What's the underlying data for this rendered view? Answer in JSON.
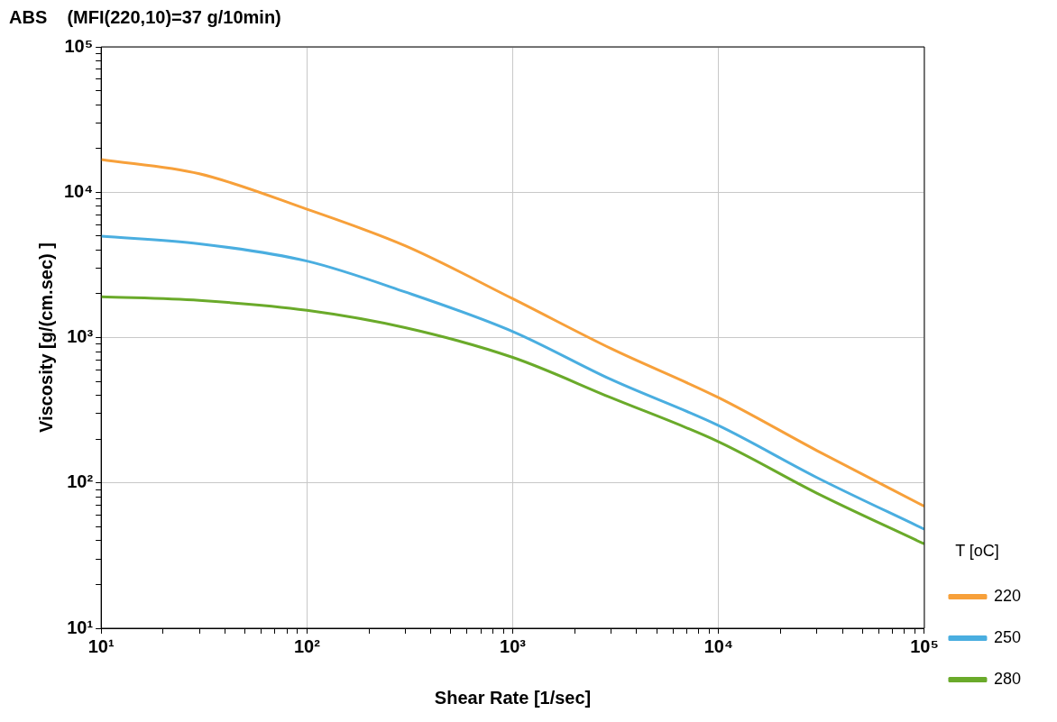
{
  "chart_data": {
    "type": "line",
    "title": "ABS    (MFI(220,10)=37 g/10min)",
    "xlabel": "Shear Rate [1/sec]",
    "ylabel": "Viscosity [g/(cm.sec) ]",
    "legend_title": "T [oC]",
    "log": "xy",
    "grid": true,
    "legend": "bottom right",
    "marker": "none",
    "line_style": "solid",
    "x": [
      10,
      30,
      100,
      300,
      1000,
      3000,
      10000,
      30000,
      100000
    ],
    "xlim": [
      10,
      100000
    ],
    "ylim": [
      10,
      100000
    ],
    "xticks": [
      {
        "value": 10,
        "label": "10¹"
      },
      {
        "value": 20,
        "label": null
      },
      {
        "value": 30,
        "label": null
      },
      {
        "value": 40,
        "label": null
      },
      {
        "value": 50,
        "label": null
      },
      {
        "value": 60,
        "label": null
      },
      {
        "value": 70,
        "label": null
      },
      {
        "value": 80,
        "label": null
      },
      {
        "value": 90,
        "label": null
      },
      {
        "value": 100,
        "label": "10²"
      },
      {
        "value": 200,
        "label": null
      },
      {
        "value": 300,
        "label": null
      },
      {
        "value": 400,
        "label": null
      },
      {
        "value": 500,
        "label": null
      },
      {
        "value": 600,
        "label": null
      },
      {
        "value": 700,
        "label": null
      },
      {
        "value": 800,
        "label": null
      },
      {
        "value": 900,
        "label": null
      },
      {
        "value": 1000,
        "label": "10³"
      },
      {
        "value": 2000,
        "label": null
      },
      {
        "value": 3000,
        "label": null
      },
      {
        "value": 4000,
        "label": null
      },
      {
        "value": 5000,
        "label": null
      },
      {
        "value": 6000,
        "label": null
      },
      {
        "value": 7000,
        "label": null
      },
      {
        "value": 8000,
        "label": null
      },
      {
        "value": 9000,
        "label": null
      },
      {
        "value": 10000,
        "label": "10⁴"
      },
      {
        "value": 20000,
        "label": null
      },
      {
        "value": 30000,
        "label": null
      },
      {
        "value": 40000,
        "label": null
      },
      {
        "value": 50000,
        "label": null
      },
      {
        "value": 60000,
        "label": null
      },
      {
        "value": 70000,
        "label": null
      },
      {
        "value": 80000,
        "label": null
      },
      {
        "value": 90000,
        "label": null
      },
      {
        "value": 100000,
        "label": "10⁵"
      }
    ],
    "yticks": [
      {
        "value": 10,
        "label": "10¹"
      },
      {
        "value": 20,
        "label": null
      },
      {
        "value": 30,
        "label": null
      },
      {
        "value": 40,
        "label": null
      },
      {
        "value": 50,
        "label": null
      },
      {
        "value": 60,
        "label": null
      },
      {
        "value": 70,
        "label": null
      },
      {
        "value": 80,
        "label": null
      },
      {
        "value": 90,
        "label": null
      },
      {
        "value": 100,
        "label": "10²"
      },
      {
        "value": 200,
        "label": null
      },
      {
        "value": 300,
        "label": null
      },
      {
        "value": 400,
        "label": null
      },
      {
        "value": 500,
        "label": null
      },
      {
        "value": 600,
        "label": null
      },
      {
        "value": 700,
        "label": null
      },
      {
        "value": 800,
        "label": null
      },
      {
        "value": 900,
        "label": null
      },
      {
        "value": 1000,
        "label": "10³"
      },
      {
        "value": 2000,
        "label": null
      },
      {
        "value": 3000,
        "label": null
      },
      {
        "value": 4000,
        "label": null
      },
      {
        "value": 5000,
        "label": null
      },
      {
        "value": 6000,
        "label": null
      },
      {
        "value": 7000,
        "label": null
      },
      {
        "value": 8000,
        "label": null
      },
      {
        "value": 9000,
        "label": null
      },
      {
        "value": 10000,
        "label": "10⁴"
      },
      {
        "value": 20000,
        "label": null
      },
      {
        "value": 30000,
        "label": null
      },
      {
        "value": 40000,
        "label": null
      },
      {
        "value": 50000,
        "label": null
      },
      {
        "value": 60000,
        "label": null
      },
      {
        "value": 70000,
        "label": null
      },
      {
        "value": 80000,
        "label": null
      },
      {
        "value": 90000,
        "label": null
      },
      {
        "value": 100000,
        "label": "10⁵"
      }
    ],
    "series": [
      {
        "name": "220",
        "color": "#f7a03a",
        "values": [
          16800,
          13400,
          7640,
          4280,
          1850,
          840,
          386,
          167,
          69
        ]
      },
      {
        "name": "250",
        "color": "#4aaee0",
        "values": [
          4990,
          4420,
          3360,
          2060,
          1100,
          515,
          248,
          109,
          48
        ]
      },
      {
        "name": "280",
        "color": "#6aaa2a",
        "values": [
          1910,
          1800,
          1540,
          1170,
          730,
          386,
          192,
          85,
          38
        ]
      }
    ]
  }
}
